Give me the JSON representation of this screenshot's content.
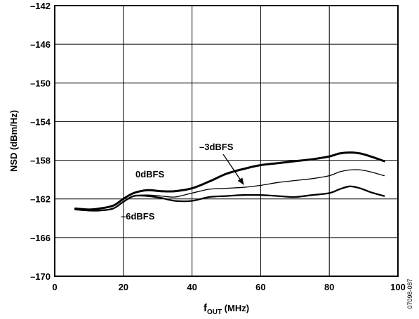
{
  "chart_data": {
    "type": "line",
    "title": "",
    "xlabel_main": "f",
    "xlabel_sub": "OUT",
    "xlabel_unit": " (MHz)",
    "ylabel": "NSD (dBm/Hz)",
    "xlim": [
      0,
      100
    ],
    "ylim": [
      -170,
      -142
    ],
    "x_ticks": [
      0,
      20,
      40,
      60,
      80,
      100
    ],
    "y_ticks": [
      -142,
      -146,
      -150,
      -154,
      -158,
      -162,
      -166,
      -170
    ],
    "x_tick_labels": [
      "0",
      "20",
      "40",
      "60",
      "80",
      "100"
    ],
    "y_tick_labels": [
      "–142",
      "–146",
      "–150",
      "–154",
      "–158",
      "–162",
      "–166",
      "–170"
    ],
    "grid": true,
    "series": [
      {
        "name": "0dBFS",
        "color": "#000000",
        "weight": "heavy",
        "x": [
          6,
          10,
          13,
          17,
          20,
          23,
          27,
          31,
          35,
          40,
          45,
          50,
          55,
          60,
          65,
          70,
          75,
          80,
          83,
          86,
          89,
          92,
          96
        ],
        "y": [
          -163.0,
          -163.1,
          -163.0,
          -162.7,
          -162.0,
          -161.4,
          -161.1,
          -161.2,
          -161.2,
          -160.9,
          -160.2,
          -159.4,
          -158.9,
          -158.5,
          -158.3,
          -158.1,
          -157.9,
          -157.6,
          -157.3,
          -157.2,
          -157.3,
          -157.6,
          -158.1
        ]
      },
      {
        "name": "–3dBFS",
        "color": "#000000",
        "weight": "thin",
        "x": [
          6,
          10,
          13,
          17,
          20,
          23,
          27,
          31,
          35,
          40,
          45,
          50,
          55,
          60,
          65,
          70,
          75,
          80,
          83,
          86,
          89,
          92,
          96
        ],
        "y": [
          -163.0,
          -163.2,
          -163.2,
          -163.0,
          -162.3,
          -161.7,
          -161.6,
          -161.7,
          -161.8,
          -161.4,
          -161.0,
          -160.9,
          -160.8,
          -160.6,
          -160.3,
          -160.1,
          -159.9,
          -159.6,
          -159.2,
          -159.0,
          -159.0,
          -159.2,
          -159.6
        ]
      },
      {
        "name": "–6dBFS",
        "color": "#000000",
        "weight": "medium",
        "x": [
          6,
          10,
          13,
          17,
          20,
          23,
          27,
          31,
          35,
          40,
          45,
          50,
          55,
          60,
          65,
          70,
          75,
          80,
          83,
          86,
          89,
          92,
          96
        ],
        "y": [
          -163.1,
          -163.2,
          -163.2,
          -163.0,
          -162.3,
          -161.7,
          -161.7,
          -161.9,
          -162.2,
          -162.2,
          -161.8,
          -161.7,
          -161.6,
          -161.6,
          -161.7,
          -161.8,
          -161.6,
          -161.4,
          -161.0,
          -160.7,
          -160.9,
          -161.3,
          -161.7
        ]
      }
    ],
    "annotations": [
      {
        "text": "0dBFS",
        "series": "0dBFS"
      },
      {
        "text": "–3dBFS",
        "series": "–3dBFS",
        "arrow": true
      },
      {
        "text": "–6dBFS",
        "series": "–6dBFS"
      }
    ],
    "figure_id": "07098-087"
  }
}
